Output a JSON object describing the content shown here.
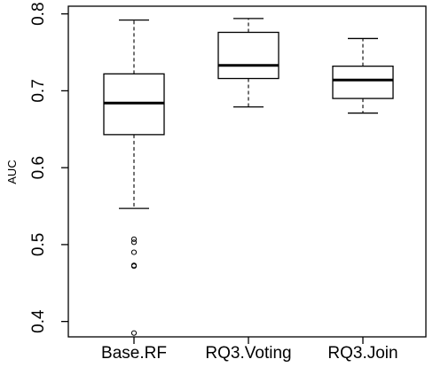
{
  "chart_data": {
    "type": "box",
    "ylabel": "AUC",
    "ylim": [
      0.38,
      0.81
    ],
    "yticks": [
      0.4,
      0.5,
      0.6,
      0.7,
      0.8
    ],
    "categories": [
      "Base.RF",
      "RQ3.Voting",
      "RQ3.Join"
    ],
    "boxes": [
      {
        "name": "Base.RF",
        "whisker_low": 0.547,
        "q1": 0.643,
        "median": 0.684,
        "q3": 0.722,
        "whisker_high": 0.792,
        "outliers": [
          0.472,
          0.473,
          0.49,
          0.503,
          0.507,
          0.385
        ]
      },
      {
        "name": "RQ3.Voting",
        "whisker_low": 0.679,
        "q1": 0.716,
        "median": 0.733,
        "q3": 0.776,
        "whisker_high": 0.794,
        "outliers": []
      },
      {
        "name": "RQ3.Join",
        "whisker_low": 0.671,
        "q1": 0.69,
        "median": 0.714,
        "q3": 0.732,
        "whisker_high": 0.768,
        "outliers": []
      }
    ],
    "grid": false,
    "colors": {
      "box_fill": "#ffffff",
      "line": "#000000"
    }
  }
}
